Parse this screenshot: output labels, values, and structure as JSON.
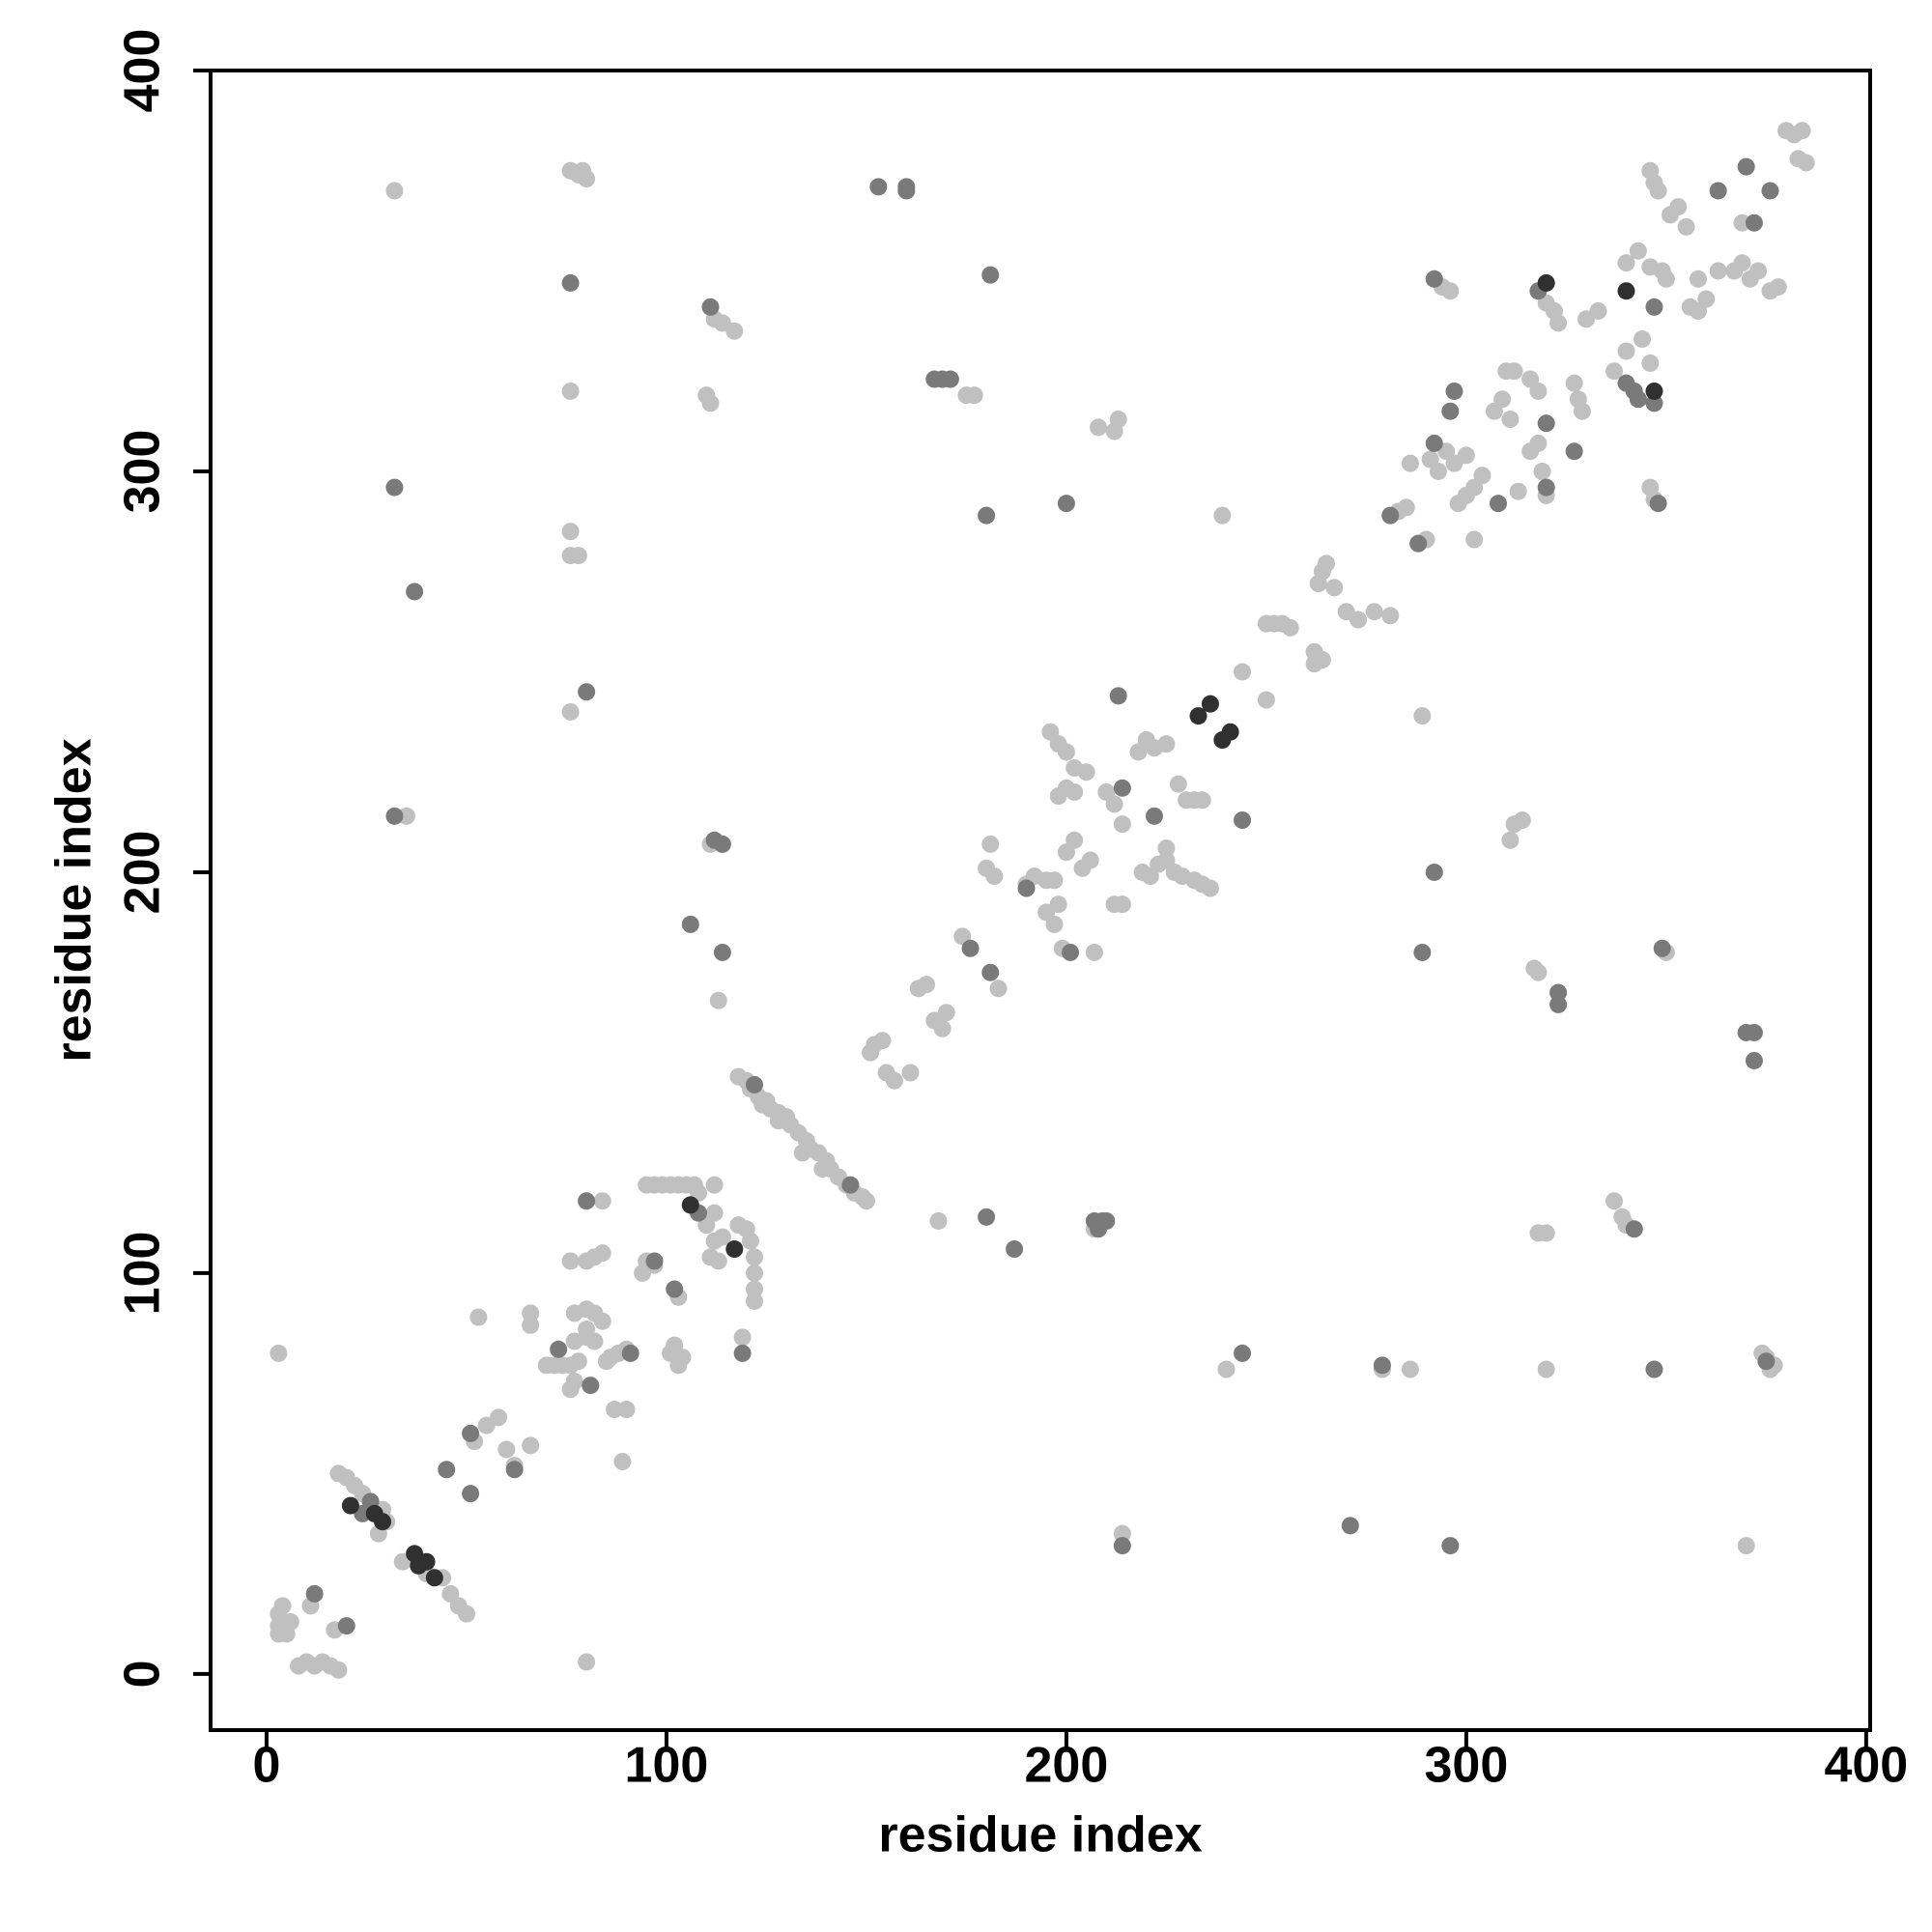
{
  "chart_data": {
    "type": "scatter",
    "xlabel": "residue index",
    "ylabel": "residue index",
    "xlim": [
      -14,
      401
    ],
    "ylim": [
      -14,
      400
    ],
    "xticks": [
      0,
      100,
      200,
      300,
      400
    ],
    "yticks": [
      0,
      100,
      200,
      300,
      400
    ],
    "series": [
      {
        "color": "#c0c0c0",
        "x": [
          3,
          5,
          3,
          4,
          6,
          3,
          8,
          10,
          12,
          14,
          16,
          18,
          11,
          17,
          18,
          20,
          22,
          24,
          26,
          28,
          29,
          30,
          34,
          40,
          44,
          46,
          48,
          50,
          51,
          52,
          55,
          58,
          60,
          62,
          66,
          53,
          66,
          66,
          70,
          72,
          74,
          76,
          76,
          77,
          78,
          76,
          80,
          82,
          84,
          77,
          80,
          82,
          84,
          80,
          77,
          80,
          82,
          84,
          85,
          86,
          88,
          90,
          87,
          90,
          89,
          94,
          95,
          97,
          95,
          97,
          99,
          101,
          103,
          105,
          107,
          103,
          101,
          102,
          103,
          104,
          108,
          110,
          112,
          112,
          111,
          112,
          113,
          114,
          118,
          120,
          121,
          122,
          122,
          122,
          122,
          119,
          111,
          113,
          112,
          114,
          117,
          110,
          111,
          118,
          120,
          121,
          123,
          125,
          126,
          128,
          130,
          131,
          133,
          135,
          136,
          138,
          140,
          141,
          143,
          145,
          147,
          149,
          150,
          124,
          128,
          134,
          139,
          152,
          154,
          151,
          155,
          157,
          161,
          163,
          165,
          167,
          170,
          169,
          168,
          174,
          180,
          181,
          182,
          183,
          175,
          177,
          76,
          78,
          80,
          79,
          76,
          76,
          76,
          78,
          76,
          32,
          35,
          3,
          80,
          190,
          192,
          195,
          197,
          195,
          197,
          198,
          199,
          207,
          196,
          198,
          200,
          202,
          202,
          200,
          198,
          205,
          210,
          212,
          214,
          200,
          202,
          204,
          206,
          212,
          214,
          208,
          212,
          213,
          207,
          214,
          218,
          220,
          222,
          225,
          219,
          221,
          223,
          225,
          227,
          229,
          232,
          234,
          236,
          225,
          228,
          230,
          232,
          234,
          239,
          240,
          244,
          250,
          250,
          252,
          254,
          256,
          262,
          262,
          264,
          263,
          264,
          265,
          267,
          270,
          273,
          277,
          281,
          279,
          286,
          283,
          285,
          286,
          288,
          290,
          289,
          291,
          293,
          295,
          297,
          300,
          294,
          296,
          298,
          300,
          302,
          304,
          302,
          307,
          309,
          311,
          310,
          312,
          312,
          314,
          311,
          313,
          316,
          318,
          319,
          317,
          318,
          318,
          320,
          320,
          320,
          322,
          323,
          316,
          318,
          320,
          328,
          327,
          329,
          330,
          333,
          337,
          339,
          340,
          340,
          337,
          344,
          346,
          340,
          343,
          346,
          349,
          350,
          346,
          347,
          346,
          347,
          348,
          350,
          351,
          353,
          355,
          356,
          358,
          360,
          358,
          363,
          367,
          369,
          371,
          373,
          369,
          370,
          374,
          375,
          377,
          376,
          376,
          378,
          380,
          382,
          384,
          383,
          385
        ],
        "y": [
          12,
          10,
          15,
          17,
          13,
          10,
          2,
          3,
          2,
          3,
          2,
          1,
          17,
          11,
          50,
          49,
          47,
          45,
          43,
          35,
          41,
          38,
          28,
          25,
          24,
          20,
          17,
          15,
          60,
          58,
          62,
          64,
          56,
          52,
          57,
          89,
          90,
          87,
          77,
          77,
          77,
          77,
          71,
          73,
          78,
          103,
          103,
          104,
          105,
          90,
          91,
          90,
          88,
          86,
          83,
          84,
          83,
          118,
          78,
          79,
          80,
          81,
          66,
          66,
          53,
          100,
          103,
          102,
          122,
          122,
          122,
          122,
          122,
          122,
          122,
          94,
          80,
          82,
          77,
          79,
          120,
          112,
          122,
          115,
          104,
          108,
          103,
          109,
          112,
          111,
          108,
          104,
          100,
          96,
          93,
          84,
          207,
          168,
          338,
          337,
          335,
          319,
          317,
          149,
          148,
          146,
          144,
          143,
          141,
          140,
          139,
          137,
          135,
          133,
          131,
          130,
          128,
          126,
          124,
          122,
          120,
          119,
          118,
          142,
          138,
          130,
          126,
          157,
          158,
          155,
          150,
          148,
          150,
          171,
          172,
          163,
          165,
          161,
          113,
          184,
          201,
          207,
          199,
          171,
          319,
          319,
          375,
          374,
          373,
          375,
          320,
          285,
          279,
          279,
          240,
          370,
          214,
          80,
          3,
          197,
          199,
          198,
          198,
          190,
          187,
          192,
          181,
          180,
          235,
          232,
          230,
          226,
          220,
          221,
          219,
          225,
          220,
          217,
          212,
          205,
          208,
          201,
          203,
          192,
          192,
          311,
          310,
          313,
          111,
          35,
          230,
          233,
          231,
          232,
          200,
          199,
          202,
          203,
          200,
          199,
          198,
          197,
          196,
          206,
          222,
          218,
          218,
          218,
          289,
          76,
          250,
          243,
          262,
          262,
          262,
          261,
          252,
          255,
          253,
          272,
          275,
          277,
          271,
          265,
          263,
          265,
          264,
          76,
          76,
          290,
          291,
          302,
          282,
          283,
          239,
          303,
          300,
          305,
          302,
          304,
          346,
          345,
          292,
          294,
          296,
          299,
          283,
          315,
          318,
          313,
          325,
          325,
          212,
          213,
          208,
          295,
          305,
          307,
          300,
          176,
          175,
          110,
          110,
          76,
          342,
          340,
          337,
          323,
          320,
          294,
          318,
          322,
          315,
          338,
          340,
          118,
          114,
          112,
          330,
          325,
          333,
          327,
          352,
          355,
          351,
          350,
          348,
          296,
          293,
          375,
          372,
          370,
          180,
          364,
          366,
          361,
          341,
          340,
          343,
          348,
          350,
          350,
          352,
          348,
          350,
          362,
          32,
          80,
          79,
          77,
          76,
          345,
          346,
          385,
          384,
          385,
          378,
          377
        ]
      },
      {
        "color": "#7a7a7a",
        "x": [
          20,
          12,
          24,
          26,
          45,
          51,
          51,
          62,
          73,
          81,
          80,
          91,
          97,
          102,
          108,
          106,
          112,
          114,
          114,
          111,
          119,
          122,
          146,
          153,
          160,
          160,
          167,
          169,
          171,
          181,
          180,
          176,
          181,
          180,
          187,
          76,
          80,
          32,
          37,
          32,
          190,
          201,
          214,
          213,
          200,
          207,
          208,
          209,
          210,
          214,
          222,
          244,
          244,
          271,
          279,
          281,
          289,
          292,
          292,
          292,
          296,
          297,
          296,
          308,
          320,
          320,
          323,
          323,
          318,
          327,
          342,
          347,
          340,
          342,
          343,
          347,
          347,
          348,
          349,
          363,
          370,
          372,
          370,
          372,
          372,
          375,
          376,
          288
        ],
        "y": [
          12,
          20,
          40,
          43,
          51,
          45,
          60,
          51,
          81,
          72,
          118,
          80,
          103,
          96,
          115,
          187,
          208,
          207,
          180,
          341,
          80,
          147,
          122,
          371,
          371,
          370,
          323,
          323,
          323,
          349,
          289,
          181,
          175,
          114,
          106,
          347,
          245,
          296,
          270,
          214,
          196,
          180,
          221,
          244,
          292,
          113,
          111,
          113,
          113,
          32,
          214,
          213,
          80,
          37,
          77,
          289,
          180,
          200,
          307,
          348,
          315,
          320,
          32,
          292,
          296,
          312,
          170,
          167,
          345,
          305,
          111,
          76,
          322,
          320,
          318,
          341,
          317,
          292,
          181,
          370,
          376,
          362,
          160,
          160,
          153,
          78,
          370,
          282
        ]
      },
      {
        "color": "#303030",
        "x": [
          21,
          27,
          29,
          37,
          38,
          42,
          40,
          106,
          117,
          233,
          236,
          239,
          241,
          320,
          340,
          347
        ],
        "y": [
          42,
          40,
          38,
          30,
          27,
          24,
          28,
          117,
          106,
          239,
          242,
          233,
          235,
          347,
          345,
          320
        ]
      }
    ]
  }
}
